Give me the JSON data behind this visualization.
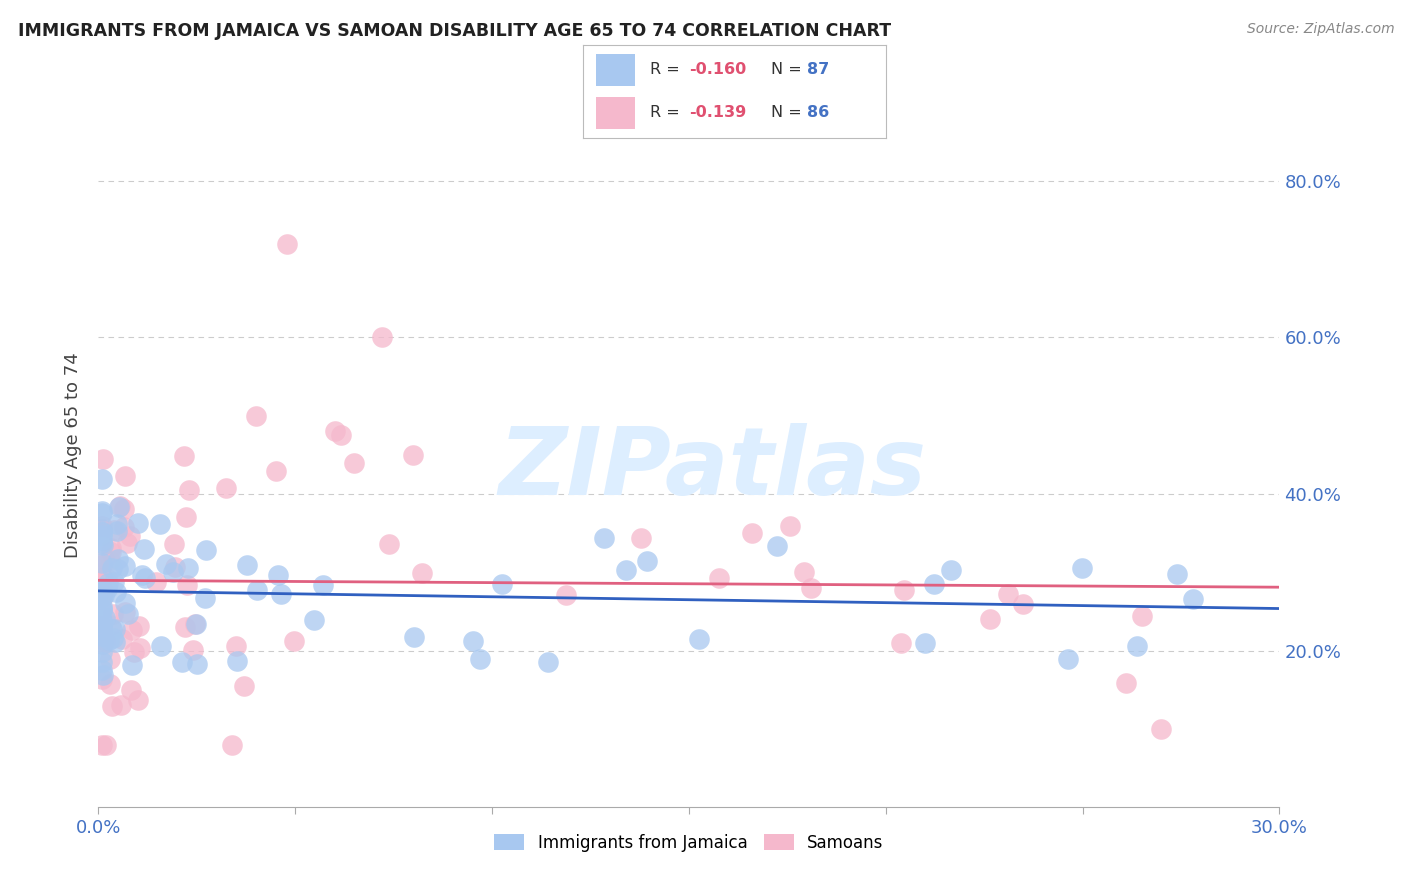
{
  "title": "IMMIGRANTS FROM JAMAICA VS SAMOAN DISABILITY AGE 65 TO 74 CORRELATION CHART",
  "source": "Source: ZipAtlas.com",
  "ylabel_label": "Disability Age 65 to 74",
  "x_min": 0.0,
  "x_max": 0.3,
  "y_min": 0.0,
  "y_max": 0.9,
  "y_ticks": [
    0.2,
    0.4,
    0.6,
    0.8
  ],
  "y_tick_labels": [
    "20.0%",
    "40.0%",
    "60.0%",
    "80.0%"
  ],
  "legend_r1": "R = -0.160",
  "legend_n1": "N = 87",
  "legend_r2": "R = -0.139",
  "legend_n2": "N = 86",
  "color_jamaica": "#a8c8f0",
  "color_samoan": "#f5b8cc",
  "color_line_jamaica": "#3060c0",
  "color_line_samoan": "#e06080",
  "color_axis_label": "#4472c4",
  "color_title": "#222222",
  "watermark_color": "#ddeeff",
  "grid_color": "#cccccc",
  "background_color": "#ffffff",
  "legend_text_color": "#4472c4",
  "legend_r_color": "#e05070"
}
